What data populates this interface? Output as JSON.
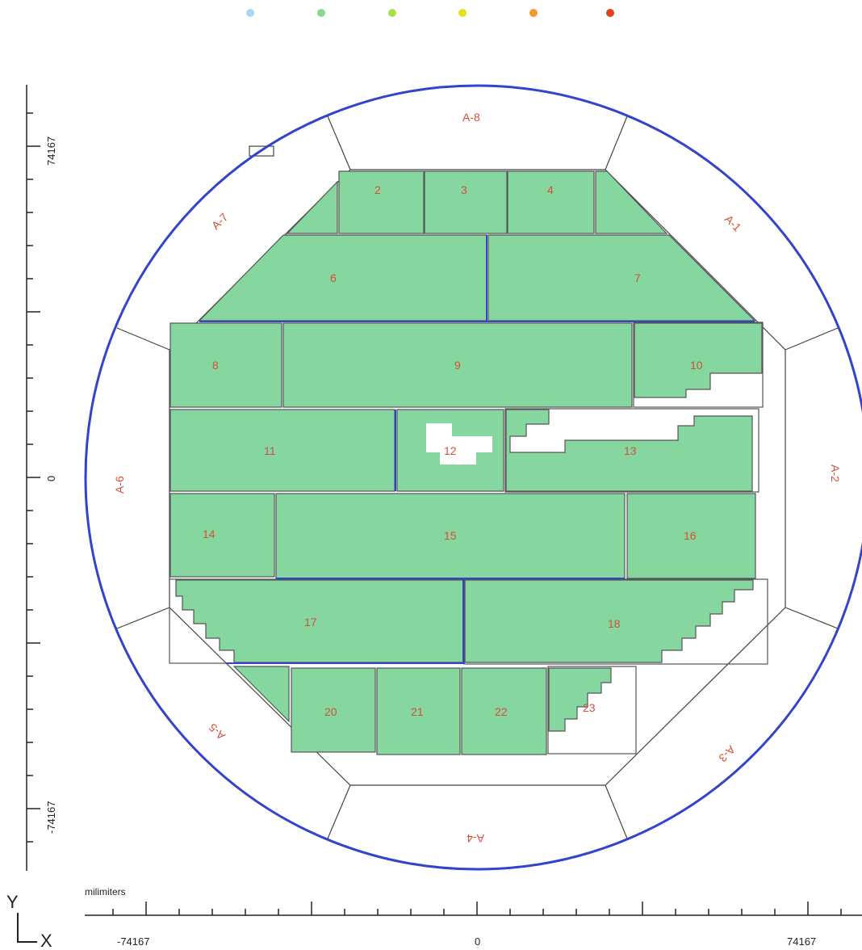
{
  "legend": {
    "dots": [
      {
        "name": "light-blue-dot",
        "color": "#a8d8ef"
      },
      {
        "name": "green-dot",
        "color": "#8fd68f"
      },
      {
        "name": "lime-dot",
        "color": "#a8e04a"
      },
      {
        "name": "yellow-dot",
        "color": "#e6e01a"
      },
      {
        "name": "orange-dot",
        "color": "#ef9a2a"
      },
      {
        "name": "red-dot",
        "color": "#e2401a"
      }
    ]
  },
  "colors": {
    "wafer_edge": "#3344cc",
    "die_fill": "#86d6a0",
    "die_outline": "#555555",
    "label": "#d4503a"
  },
  "zones": [
    "A-1",
    "A-2",
    "A-3",
    "A-4",
    "A-5",
    "A-6",
    "A-7",
    "A-8"
  ],
  "dies": [
    "2",
    "3",
    "4",
    "6",
    "7",
    "8",
    "9",
    "10",
    "11",
    "12",
    "13",
    "14",
    "15",
    "16",
    "17",
    "18",
    "20",
    "21",
    "22",
    "23"
  ],
  "axis": {
    "unit_label": "milimiters",
    "x_ticks": [
      "-74167",
      "0",
      "74167"
    ],
    "y_ticks": [
      "74167",
      "0",
      "-74167"
    ],
    "y_label": "Y",
    "x_label": "X"
  }
}
